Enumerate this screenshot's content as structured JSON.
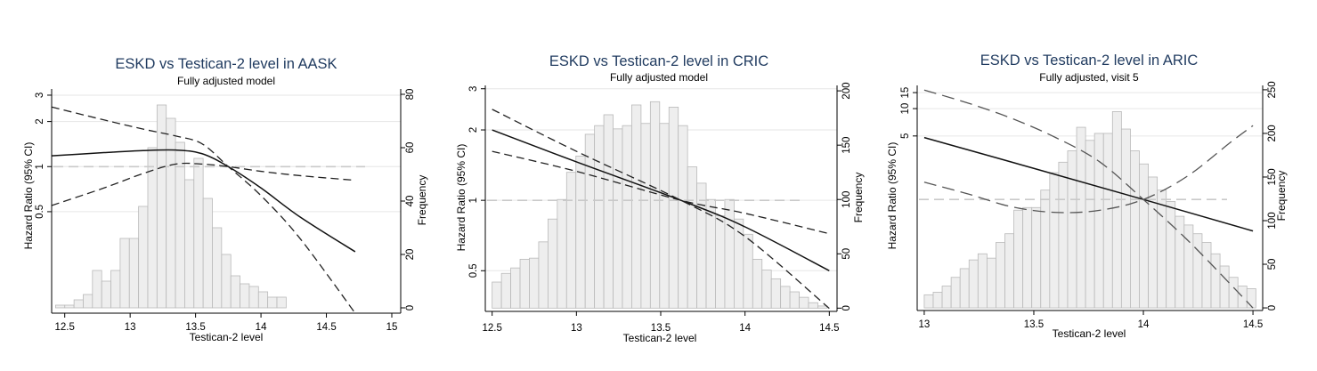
{
  "chart_data": [
    {
      "type": "histogram+line",
      "title": "ESKD vs Testican-2 level in AASK",
      "subtitle": "Fully adjusted model",
      "xlabel": "Testican-2 level",
      "ylabel_left": "Hazard Ratio (95% CI)",
      "ylabel_right": "Frequency",
      "xlim": [
        12.4,
        15
      ],
      "x_ticks": [
        12.5,
        13,
        13.5,
        14,
        14.5,
        15
      ],
      "hr_scale": "log",
      "hr_lim": [
        0.105,
        3.3
      ],
      "hr_ticks": [
        0.5,
        1,
        2,
        3
      ],
      "hr_tick_labels": [
        "0.5",
        "1",
        "2",
        "3"
      ],
      "freq_lim": [
        -2,
        82
      ],
      "freq_ticks": [
        0,
        20,
        40,
        60,
        80
      ],
      "reference_hr": 1,
      "histogram": {
        "bin_start": 12.43,
        "bin_width": 0.0705,
        "counts": [
          1,
          1,
          3,
          5,
          14,
          10,
          14,
          26,
          26,
          38,
          60,
          76,
          71,
          62,
          48,
          56,
          41,
          30,
          20,
          12,
          9,
          8,
          6,
          4,
          4
        ]
      },
      "series": [
        {
          "role": "estimate",
          "style": "solid",
          "x": [
            12.4,
            12.8,
            13.1,
            13.35,
            13.55,
            13.75,
            14.0,
            14.3,
            14.72
          ],
          "y": [
            1.18,
            1.24,
            1.28,
            1.29,
            1.22,
            1.0,
            0.72,
            0.46,
            0.27
          ]
        },
        {
          "role": "upper",
          "style": "dashed",
          "x": [
            12.4,
            12.8,
            13.1,
            13.35,
            13.55,
            13.75,
            14.0,
            14.3,
            14.72
          ],
          "y": [
            2.5,
            2.05,
            1.78,
            1.6,
            1.42,
            1.0,
            0.64,
            0.33,
            0.105
          ]
        },
        {
          "role": "lower",
          "style": "dashed",
          "x": [
            12.4,
            12.8,
            13.1,
            13.35,
            13.55,
            13.75,
            14.0,
            14.3,
            14.72
          ],
          "y": [
            0.55,
            0.72,
            0.9,
            1.04,
            1.04,
            1.0,
            0.93,
            0.87,
            0.81
          ]
        }
      ]
    },
    {
      "type": "histogram+line",
      "title": "ESKD vs Testican-2 level in CRIC",
      "subtitle": "Fully adjusted model",
      "xlabel": "Testican-2 level",
      "ylabel_left": "Hazard Ratio (95% CI)",
      "ylabel_right": "Frequency",
      "xlim": [
        12.47,
        14.53
      ],
      "x_ticks": [
        12.5,
        13,
        13.5,
        14,
        14.5
      ],
      "hr_scale": "log",
      "hr_lim": [
        0.335,
        3.1
      ],
      "hr_ticks": [
        0.5,
        1,
        2,
        3
      ],
      "hr_tick_labels": [
        "0.5",
        "1",
        "2",
        "3"
      ],
      "freq_lim": [
        -3,
        205
      ],
      "freq_ticks": [
        0,
        50,
        100,
        150,
        200
      ],
      "reference_hr": 1,
      "histogram": {
        "bin_start": 12.5,
        "bin_width": 0.0552,
        "counts": [
          24,
          32,
          37,
          45,
          46,
          61,
          82,
          100,
          125,
          140,
          160,
          168,
          178,
          165,
          168,
          187,
          170,
          190,
          170,
          185,
          168,
          130,
          115,
          100,
          85,
          100,
          82,
          68,
          45,
          35,
          27,
          20,
          15,
          10,
          5,
          2
        ]
      },
      "series": [
        {
          "role": "estimate",
          "style": "solid",
          "x": [
            12.5,
            13.0,
            13.62,
            14.0,
            14.5
          ],
          "y": [
            2.0,
            1.46,
            1.0,
            0.77,
            0.5
          ]
        },
        {
          "role": "upper",
          "style": "dashed",
          "x": [
            12.5,
            13.0,
            13.62,
            14.0,
            14.5
          ],
          "y": [
            2.45,
            1.62,
            1.0,
            0.7,
            0.345
          ]
        },
        {
          "role": "lower",
          "style": "dashed",
          "x": [
            12.5,
            13.0,
            13.62,
            14.0,
            14.5
          ],
          "y": [
            1.62,
            1.33,
            1.0,
            0.88,
            0.72
          ]
        }
      ]
    },
    {
      "type": "histogram+line",
      "title": "ESKD vs Testican-2 level in ARIC",
      "subtitle": "Fully adjusted, visit 5",
      "xlabel": "Testican-2 level",
      "ylabel_left": "Hazard Ratio (95% CI)",
      "ylabel_right": "Frequency",
      "xlim": [
        12.98,
        14.52
      ],
      "x_ticks": [
        13,
        13.5,
        14,
        14.5
      ],
      "hr_scale": "log",
      "hr_lim": [
        0.06,
        18
      ],
      "hr_ticks": [
        5,
        10,
        15
      ],
      "hr_tick_labels": [
        "5",
        "10",
        "15"
      ],
      "freq_lim": [
        -3,
        255
      ],
      "freq_ticks": [
        0,
        50,
        100,
        150,
        200,
        250
      ],
      "reference_hr": 1,
      "histogram": {
        "bin_start": 13.0,
        "bin_width": 0.0409,
        "counts": [
          15,
          18,
          25,
          35,
          45,
          55,
          62,
          57,
          75,
          85,
          112,
          115,
          115,
          135,
          155,
          167,
          180,
          207,
          192,
          200,
          200,
          225,
          205,
          180,
          165,
          150,
          135,
          122,
          105,
          95,
          85,
          75,
          62,
          48,
          35,
          25,
          22
        ]
      },
      "series": [
        {
          "role": "estimate",
          "style": "solid",
          "x": [
            13.0,
            13.5,
            14.0,
            14.5
          ],
          "y": [
            4.8,
            2.2,
            1.0,
            0.45
          ]
        },
        {
          "role": "upper",
          "style": "dashed",
          "x": [
            13.0,
            13.2,
            13.4,
            13.6,
            13.8,
            14.0,
            14.2,
            14.4,
            14.5
          ],
          "y": [
            16,
            11.5,
            7.8,
            4.8,
            2.6,
            1.0,
            0.36,
            0.115,
            0.064
          ]
        },
        {
          "role": "lower",
          "style": "dashed",
          "x": [
            13.0,
            13.2,
            13.4,
            13.6,
            13.8,
            14.0,
            14.2,
            14.4,
            14.5
          ],
          "y": [
            1.55,
            1.15,
            0.83,
            0.72,
            0.76,
            1.0,
            1.8,
            4.3,
            6.5
          ]
        }
      ]
    }
  ]
}
